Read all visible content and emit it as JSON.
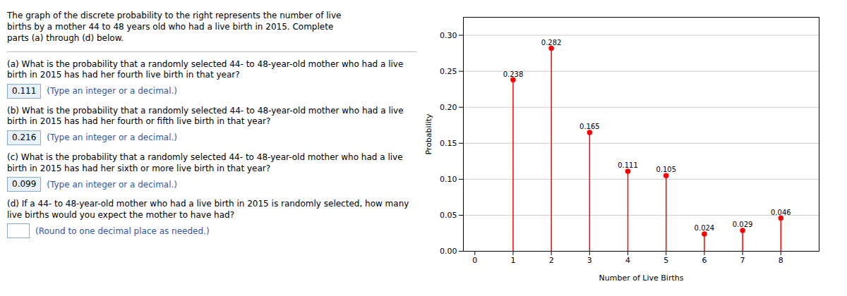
{
  "chart_data": {
    "type": "stem",
    "xlabel": "Number of Live Births",
    "ylabel": "Probability",
    "x": [
      1,
      2,
      3,
      4,
      5,
      6,
      7,
      8
    ],
    "values": [
      0.238,
      0.282,
      0.165,
      0.111,
      0.105,
      0.024,
      0.029,
      0.046
    ],
    "data_labels": true,
    "color": "red",
    "marker": "circle",
    "xlim": [
      -0.3,
      9.0
    ],
    "ylim": [
      0.0,
      0.325
    ],
    "xticks": [
      0,
      1,
      2,
      3,
      4,
      5,
      6,
      7,
      8
    ],
    "yticks": [
      {
        "value": 0,
        "label": "0.00"
      },
      0.05,
      {
        "value": 0.1,
        "label": "0.10"
      },
      0.15,
      {
        "value": 0.2,
        "label": "0.20"
      },
      0.25,
      {
        "value": 0.3,
        "label": "0.30"
      }
    ],
    "grid": "y",
    "annotations": [
      {
        "text": "The graph of the discrete probability to the right represents the number of live\nbirths by a mother 44 to 48 years old who had a live birth in 2015. Complete\nparts (a) through (d) below."
      },
      {
        "text": "(a) What is the probability that a randomly selected 44- to 48-year-old mother who had a live birth in 2015 has had her fourth live birth in that year?",
        "answer": "0.111",
        "note": "(Type an integer or a decimal.)"
      },
      {
        "text": "(b) What is the probability that a randomly selected 44- to 48-year-old mother who had a live birth in 2015 has had her fourth or fifth live birth in that year?",
        "answer": "0.216",
        "note": "(Type an integer or a decimal.)"
      },
      {
        "text": "(c) What is the probability that a randomly selected 44- to 48-year-old mother who had a live birth in 2015 has had her sixth or more live birth in that year?",
        "answer": "0.099",
        "note": "(Type an integer or a decimal.)"
      },
      {
        "text": "(d) If a 44- to 48-year-old mother who had a live birth in 2015 is randomly selected, how many live births would you expect the mother to have had?",
        "note": "(Round to one decimal place as needed.)"
      }
    ]
  }
}
